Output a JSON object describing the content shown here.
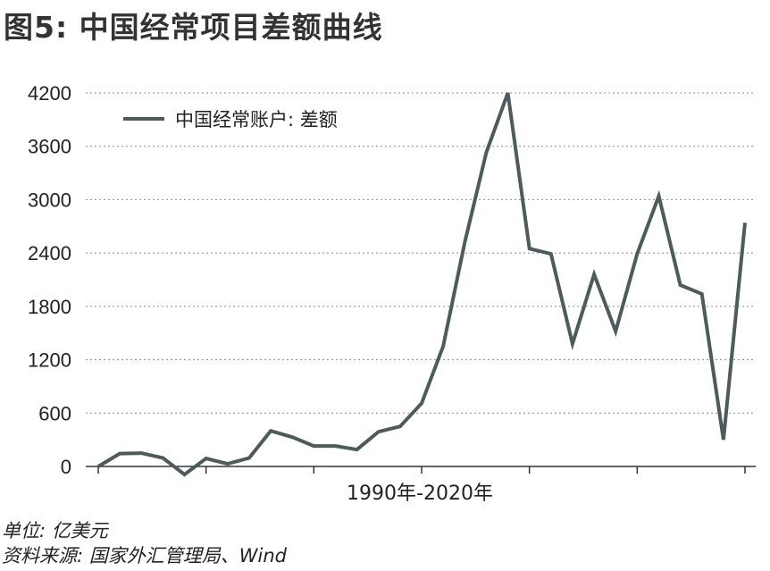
{
  "title": "图5: 中国经常项目差额曲线",
  "unit_note": "单位: 亿美元",
  "source_note": "资料来源: 国家外汇管理局、Wind",
  "line_color": "#4d5b5b",
  "chart_data": {
    "type": "line",
    "title": "图5: 中国经常项目差额曲线",
    "xlabel": "1990年-2020年",
    "ylabel": "",
    "ylim": [
      0,
      4200
    ],
    "yticks": [
      0,
      600,
      1200,
      1800,
      2400,
      3000,
      3600,
      4200
    ],
    "ytick_labels": [
      "0",
      "600",
      "1200",
      "1800",
      "2400",
      "3000",
      "3600",
      "4200"
    ],
    "grid": "horizontal dotted",
    "legend": "top-left",
    "x": [
      1990,
      1991,
      1992,
      1993,
      1994,
      1995,
      1996,
      1997,
      1998,
      1999,
      2000,
      2001,
      2002,
      2003,
      2004,
      2005,
      2006,
      2007,
      2008,
      2009,
      2010,
      2011,
      2012,
      2013,
      2014,
      2015,
      2016,
      2017,
      2018,
      2019,
      2020
    ],
    "series": [
      {
        "name": "中国经常账户: 差额",
        "values": [
          0,
          145,
          150,
          95,
          -90,
          90,
          30,
          95,
          400,
          330,
          230,
          230,
          190,
          390,
          450,
          710,
          1350,
          2520,
          3530,
          4200,
          2450,
          2390,
          1380,
          2160,
          1520,
          2390,
          3040,
          2040,
          1940,
          300,
          2740
        ]
      }
    ]
  }
}
